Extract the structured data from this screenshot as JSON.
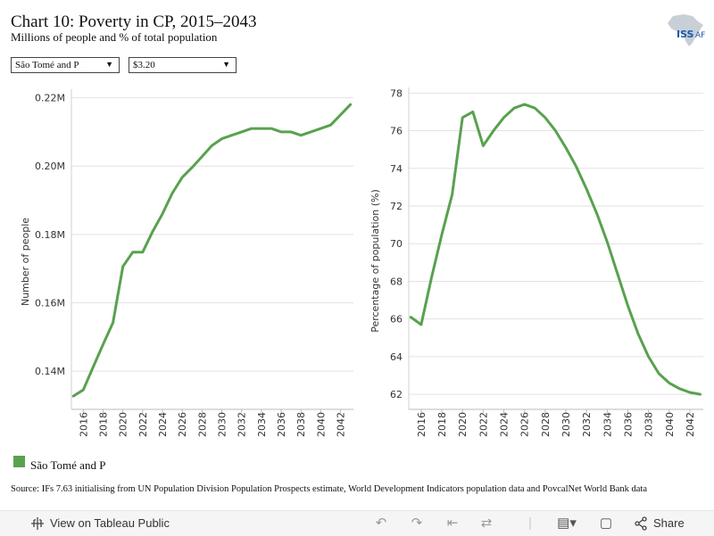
{
  "header": {
    "title": "Chart 10: Poverty in CP, 2015–2043",
    "subtitle": "Millions of people and % of total population",
    "logo_text": "ISS",
    "logo_suffix": "AF"
  },
  "filters": {
    "country": "São Tomé and P",
    "threshold": "$3.20"
  },
  "legend": {
    "label": "São Tomé and P",
    "color": "#59a14f"
  },
  "source": "Source: IFs 7.63 initialising from UN Population Division Population Prospects estimate, World Development Indicators population data and PovcalNet World Bank data",
  "footer": {
    "view_link": "View on Tableau Public",
    "share": "Share"
  },
  "chart_data": [
    {
      "type": "line",
      "ylabel": "Number of people",
      "xlabel": "",
      "x": [
        2015,
        2016,
        2017,
        2018,
        2019,
        2020,
        2021,
        2022,
        2023,
        2024,
        2025,
        2026,
        2027,
        2028,
        2029,
        2030,
        2031,
        2032,
        2033,
        2034,
        2035,
        2036,
        2037,
        2038,
        2039,
        2040,
        2041,
        2042,
        2043
      ],
      "values": [
        0.1327,
        0.1345,
        0.1412,
        0.1478,
        0.1542,
        0.1706,
        0.1748,
        0.1748,
        0.1808,
        0.186,
        0.1921,
        0.1967,
        0.1996,
        0.2028,
        0.206,
        0.208,
        0.209,
        0.21,
        0.211,
        0.211,
        0.211,
        0.21,
        0.21,
        0.209,
        0.21,
        0.211,
        0.212,
        0.215,
        0.218
      ],
      "ylim": [
        0.1288,
        0.2225
      ],
      "yticks": [
        0.14,
        0.16,
        0.18,
        0.2,
        0.22
      ],
      "ytick_labels": [
        "0.14M",
        "0.16M",
        "0.18M",
        "0.20M",
        "0.22M"
      ],
      "xticks": [
        2016,
        2018,
        2020,
        2022,
        2024,
        2026,
        2028,
        2030,
        2032,
        2034,
        2036,
        2038,
        2040,
        2042
      ],
      "color": "#59a14f"
    },
    {
      "type": "line",
      "ylabel": "Percentage of population (%)",
      "xlabel": "",
      "x": [
        2015,
        2016,
        2017,
        2018,
        2019,
        2020,
        2021,
        2022,
        2023,
        2024,
        2025,
        2026,
        2027,
        2028,
        2029,
        2030,
        2031,
        2032,
        2033,
        2034,
        2035,
        2036,
        2037,
        2038,
        2039,
        2040,
        2041,
        2042,
        2043
      ],
      "values": [
        66.1,
        65.7,
        68.2,
        70.5,
        72.6,
        76.7,
        77.0,
        75.2,
        76.0,
        76.7,
        77.2,
        77.4,
        77.2,
        76.7,
        76.0,
        75.1,
        74.1,
        72.9,
        71.6,
        70.1,
        68.4,
        66.7,
        65.2,
        64.0,
        63.1,
        62.6,
        62.3,
        62.1,
        62.0
      ],
      "ylim": [
        61.2,
        78.3
      ],
      "yticks": [
        62,
        64,
        66,
        68,
        70,
        72,
        74,
        76,
        78
      ],
      "ytick_labels": [
        "62",
        "64",
        "66",
        "68",
        "70",
        "72",
        "74",
        "76",
        "78"
      ],
      "xticks": [
        2016,
        2018,
        2020,
        2022,
        2024,
        2026,
        2028,
        2030,
        2032,
        2034,
        2036,
        2038,
        2040,
        2042
      ],
      "color": "#59a14f"
    }
  ]
}
